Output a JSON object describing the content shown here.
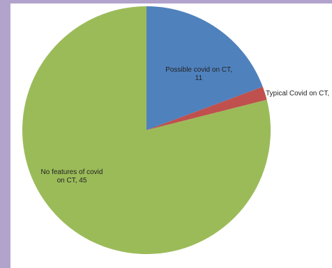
{
  "chart_data": {
    "type": "pie",
    "categories": [
      "Possible covid on CT",
      "Typical Covid on CT",
      "No features of covid on CT"
    ],
    "values": [
      11,
      1,
      45
    ],
    "colors": [
      "#4f81bd",
      "#c0504d",
      "#9bbb59"
    ],
    "data_labels": [
      [
        "Possible covid on CT,",
        "11"
      ],
      [
        "Typical Covid on CT,"
      ],
      [
        "No features of covid",
        "on CT, 45"
      ]
    ],
    "start_angle_deg": 0,
    "direction": "clockwise",
    "legend": "none"
  }
}
